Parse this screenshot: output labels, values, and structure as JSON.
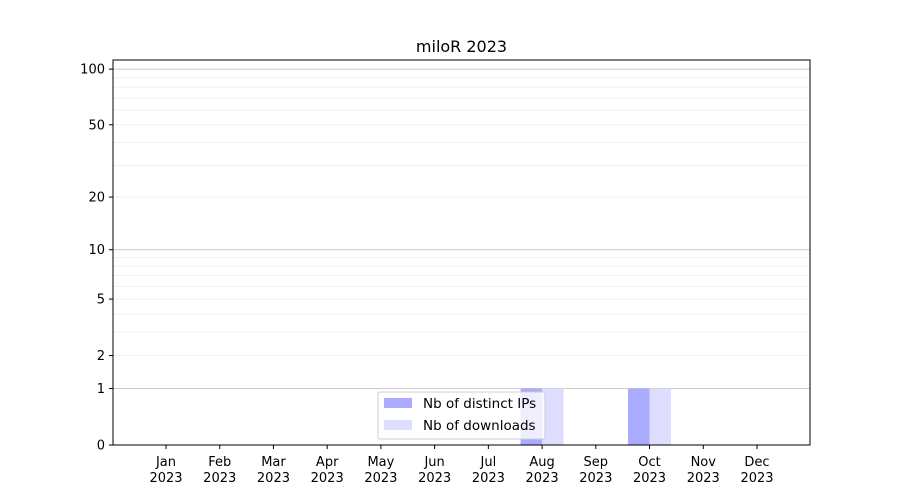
{
  "chart_data": {
    "type": "bar",
    "title": "miloR 2023",
    "xlabel": "",
    "ylabel": "",
    "y_scale": "symlog (log of 1+y)",
    "ylim": [
      0,
      112
    ],
    "yticks": [
      0,
      1,
      2,
      5,
      10,
      20,
      50,
      100
    ],
    "ytick_labels": [
      "0",
      "1",
      "2",
      "5",
      "10",
      "20",
      "50",
      "100"
    ],
    "grid": true,
    "legend_position": "lower center",
    "categories": [
      "Jan\n2023",
      "Feb\n2023",
      "Mar\n2023",
      "Apr\n2023",
      "May\n2023",
      "Jun\n2023",
      "Jul\n2023",
      "Aug\n2023",
      "Sep\n2023",
      "Oct\n2023",
      "Nov\n2023",
      "Dec\n2023"
    ],
    "tick_months": [
      "Jan",
      "Feb",
      "Mar",
      "Apr",
      "May",
      "Jun",
      "Jul",
      "Aug",
      "Sep",
      "Oct",
      "Nov",
      "Dec"
    ],
    "tick_year": "2023",
    "series": [
      {
        "name": "Nb of distinct IPs",
        "color": "#aaaaff",
        "values": [
          0,
          0,
          0,
          0,
          0,
          0,
          0,
          1,
          0,
          1,
          0,
          0
        ]
      },
      {
        "name": "Nb of downloads",
        "color": "#ddddff",
        "values": [
          0,
          0,
          0,
          0,
          0,
          0,
          0,
          1,
          0,
          1,
          0,
          0
        ]
      }
    ]
  }
}
